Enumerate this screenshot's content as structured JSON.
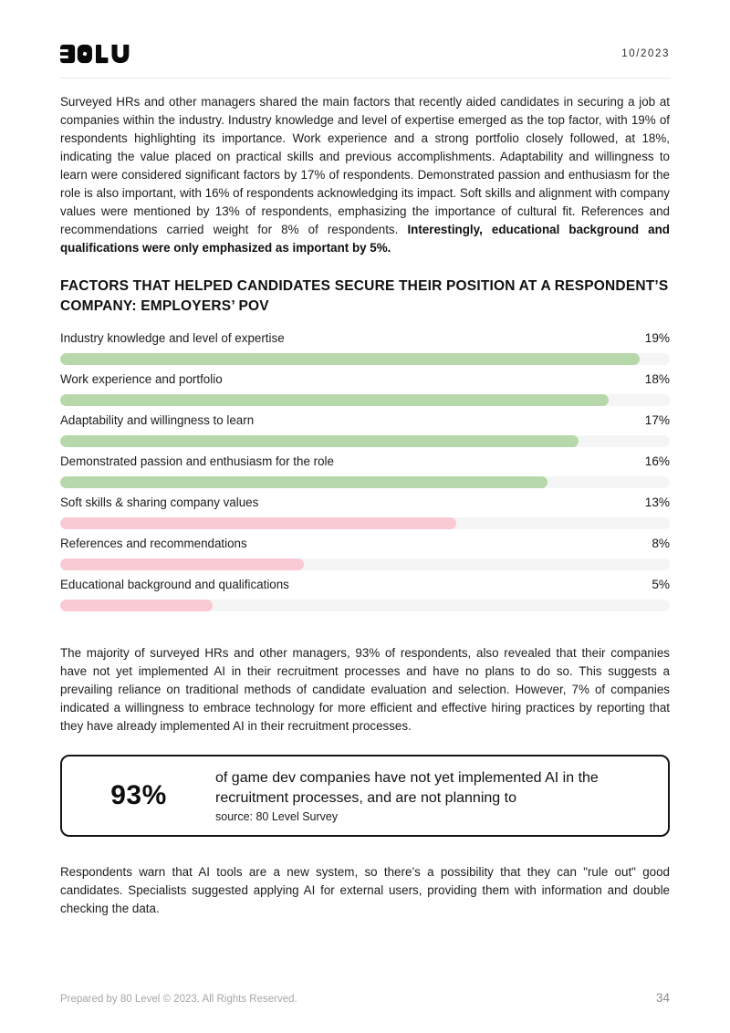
{
  "header": {
    "logo_name": "80LV",
    "date": "10/2023"
  },
  "intro_paragraph": {
    "text": "Surveyed HRs and other managers shared the main factors that recently aided candidates in securing a job at companies within the industry. Industry knowledge and level of expertise emerged as the top factor, with 19% of respondents highlighting its importance. Work experience and a strong portfolio closely followed, at 18%, indicating the value placed on practical skills and previous accomplishments. Adaptability and willingness to learn were considered significant factors by 17% of respondents. Demonstrated passion and enthusiasm for the role is also important, with 16% of respondents acknowledging its impact. Soft skills and alignment with company values were mentioned by 13% of respondents, emphasizing the importance of cultural fit. References and recommendations carried weight for 8% of respondents. ",
    "bold_text": "Interestingly, educational background and qualifications were only emphasized as important by 5%."
  },
  "section": {
    "heading": "FACTORS THAT HELPED CANDIDATES SECURE THEIR POSITION AT A RESPONDENT’S COMPANY: EMPLOYERS’ POV"
  },
  "chart_data": {
    "type": "bar",
    "orientation": "horizontal",
    "title": "Factors that helped candidates secure their position at a respondent’s company: employers’ POV",
    "categories": [
      "Industry knowledge and level of expertise",
      "Work experience and portfolio",
      "Adaptability and willingness to learn",
      "Demonstrated passion and enthusiasm for the role",
      "Soft skills & sharing company values",
      "References and recommendations",
      "Educational background and qualifications"
    ],
    "values": [
      19,
      18,
      17,
      16,
      13,
      8,
      5
    ],
    "value_labels": [
      "19%",
      "18%",
      "17%",
      "16%",
      "13%",
      "8%",
      "5%"
    ],
    "axis_max": 20,
    "colors": [
      "green",
      "green",
      "green",
      "green",
      "pink",
      "pink",
      "pink"
    ],
    "bar_colors": {
      "green": "#b7d8ab",
      "pink": "#f9c9d4"
    },
    "track_color": "#f5f5f5",
    "grid": false,
    "legend": false
  },
  "paragraphs": {
    "ai_adoption": "The majority of surveyed HRs and other managers, 93% of respondents, also revealed that their companies have not yet implemented AI in their recruitment processes and have no plans to do so. This suggests a prevailing reliance on traditional methods of candidate evaluation and selection. However, 7% of companies indicated a willingness to embrace technology for more efficient and effective hiring practices by reporting that they have already implemented AI in their recruitment processes.",
    "closing": "Respondents warn that AI tools are a new system, so there’s a possibility that they can \"rule out\" good candidates. Specialists suggested applying AI for external users, providing them with information and double checking the data."
  },
  "callout": {
    "stat": "93%",
    "description": "of game dev companies have not yet implemented AI in the recruitment processes, and are not planning to",
    "source": "source: 80 Level Survey"
  },
  "footer": {
    "copyright": "Prepared by 80 Level © 2023. All Rights Reserved.",
    "page_number": "34"
  }
}
